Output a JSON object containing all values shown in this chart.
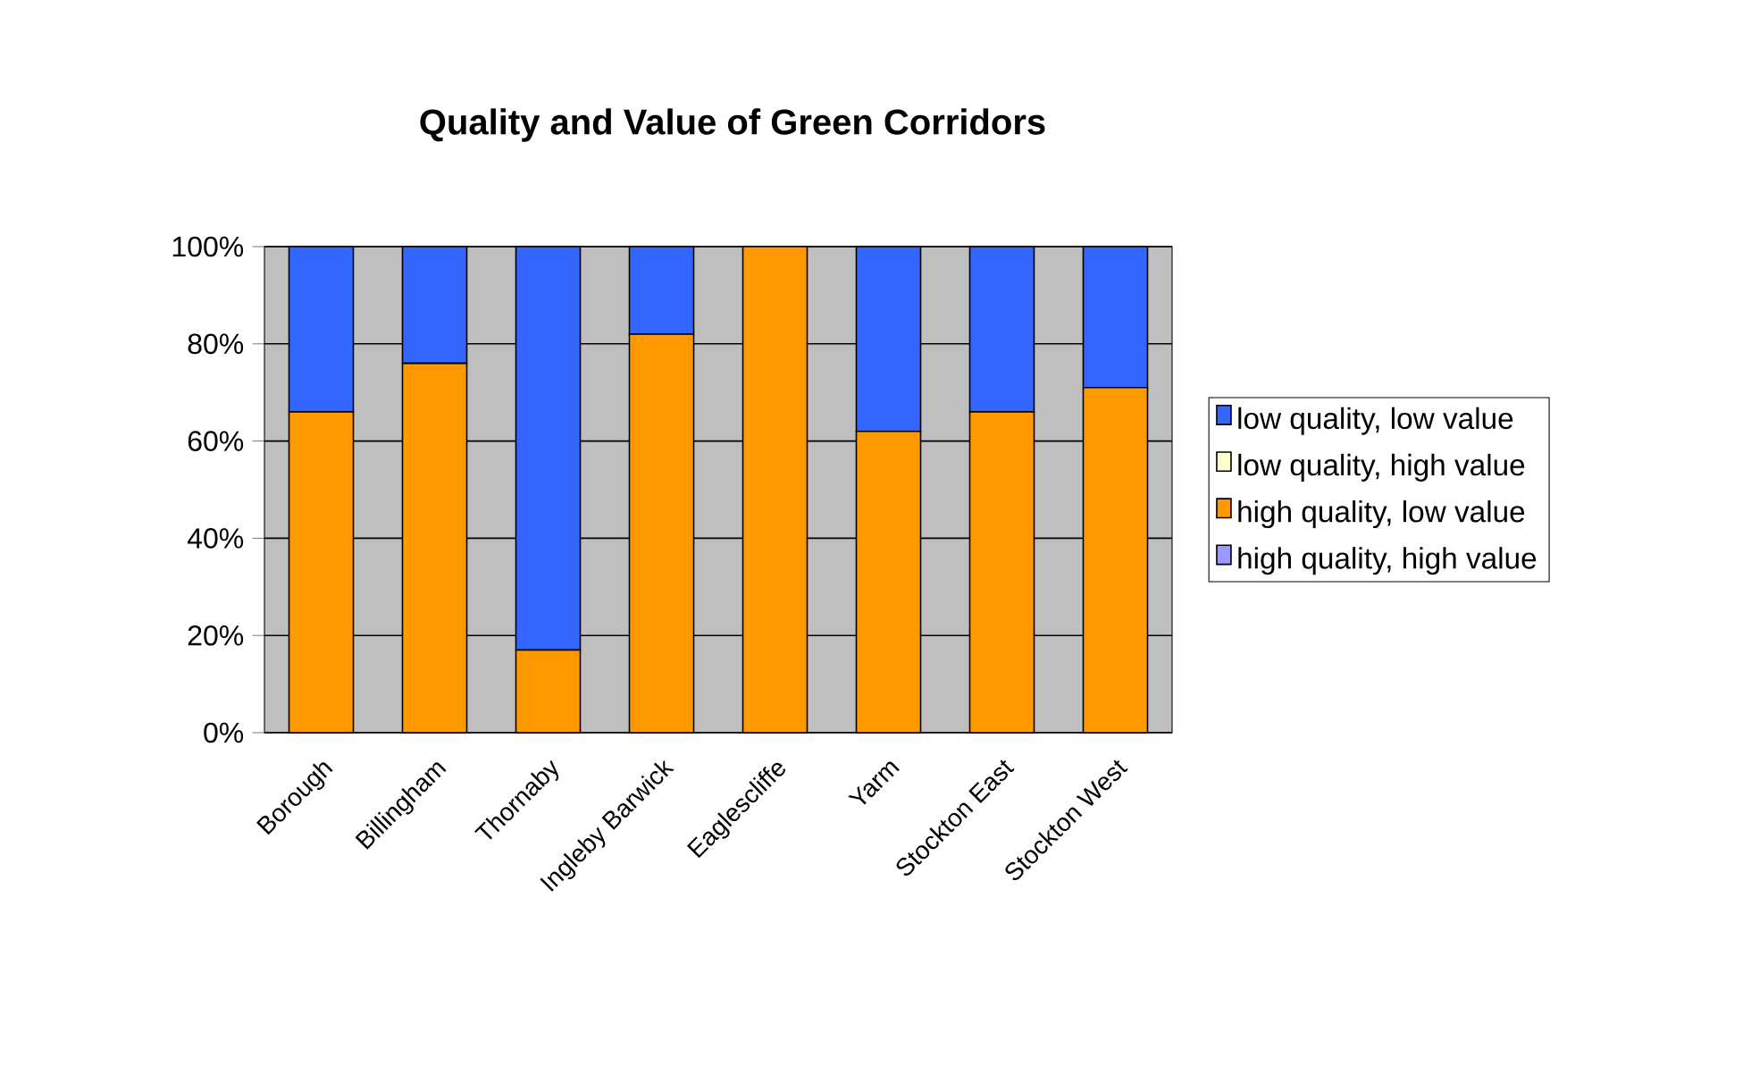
{
  "chart_data": {
    "type": "bar",
    "stacked": true,
    "title": "Quality and Value of Green Corridors",
    "categories": [
      "Borough",
      "Billingham",
      "Thornaby",
      "Ingleby Barwick",
      "Eaglescliffe",
      "Yarm",
      "Stockton East",
      "Stockton West"
    ],
    "series": [
      {
        "name": "high quality, high value",
        "color": "#9999ff",
        "values": [
          0,
          0,
          0,
          0,
          0,
          0,
          0,
          0
        ]
      },
      {
        "name": "high quality, low value",
        "color": "#ff9900",
        "values": [
          66,
          76,
          17,
          82,
          100,
          62,
          66,
          71
        ]
      },
      {
        "name": "low quality, high value",
        "color": "#ffffcc",
        "values": [
          0,
          0,
          0,
          0,
          0,
          0,
          0,
          0
        ]
      },
      {
        "name": "low quality, low value",
        "color": "#3366ff",
        "values": [
          34,
          24,
          83,
          18,
          0,
          38,
          34,
          29
        ]
      }
    ],
    "ylim": [
      0,
      100
    ],
    "yticks": [
      {
        "value": 0,
        "label": "0%"
      },
      {
        "value": 20,
        "label": "20%"
      },
      {
        "value": 40,
        "label": "40%"
      },
      {
        "value": 60,
        "label": "60%"
      },
      {
        "value": 80,
        "label": "80%"
      },
      {
        "value": 100,
        "label": "100%"
      }
    ],
    "grid": "y",
    "legend": "right"
  }
}
